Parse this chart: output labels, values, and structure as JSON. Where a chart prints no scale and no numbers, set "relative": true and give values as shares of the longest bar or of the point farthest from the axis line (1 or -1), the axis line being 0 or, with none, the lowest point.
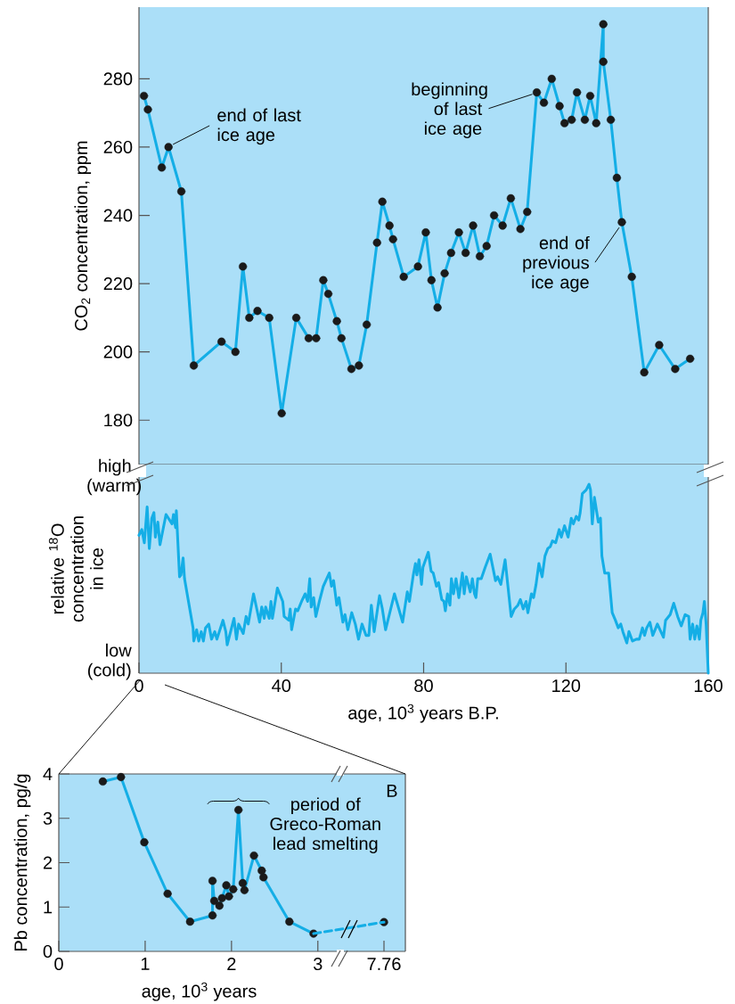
{
  "chart_data": [
    {
      "type": "line",
      "ylabel": "CO$_{2}$ concentration, ppm",
      "color": "#14aee6",
      "marker": "circle",
      "xlim": [
        0,
        160
      ],
      "ylim": [
        167,
        301
      ],
      "yticks": [
        180,
        200,
        220,
        240,
        260,
        280
      ],
      "tick_labels": "y",
      "x": [
        1.4,
        2.5,
        6.4,
        8.3,
        11.9,
        15.4,
        23.2,
        27.1,
        29.2,
        31.0,
        33.3,
        36.6,
        40.1,
        44.2,
        47.7,
        49.8,
        51.8,
        53.2,
        55.6,
        56.9,
        59.7,
        61.8,
        64.0,
        66.9,
        68.4,
        70.4,
        71.4,
        74.4,
        78.4,
        80.6,
        82.2,
        83.9,
        85.9,
        87.7,
        89.9,
        91.8,
        93.9,
        95.8,
        97.7,
        99.8,
        102.2,
        104.5,
        107.2,
        109.1,
        111.8,
        113.8,
        116.0,
        118.2,
        119.6,
        121.6,
        123.1,
        125.3,
        126.8,
        128.5,
        130.5,
        130.5,
        132.6,
        134.3,
        135.7,
        138.5,
        142.0,
        146.2,
        150.7,
        154.9
      ],
      "values": [
        275,
        271,
        254,
        260,
        247,
        196,
        203,
        200,
        225,
        210,
        212,
        210,
        182,
        210,
        204,
        204,
        221,
        217,
        209,
        204,
        195,
        196,
        208,
        232,
        244,
        237,
        233,
        222,
        225,
        235,
        221,
        213,
        223,
        229,
        235,
        229,
        237,
        228,
        231,
        240,
        237,
        245,
        236,
        241,
        276,
        273,
        280,
        272,
        267,
        268,
        276,
        268,
        275,
        267,
        296,
        285,
        268,
        251,
        238,
        222,
        194,
        202,
        195,
        198
      ],
      "annotations": [
        {
          "text": "end of last ice age",
          "x": 8.3,
          "y": 260
        },
        {
          "text": "beginning of last ice age",
          "x": 111.8,
          "y": 276
        },
        {
          "text": "end of previous ice age",
          "x": 135.7,
          "y": 238
        }
      ]
    },
    {
      "type": "line",
      "relative": true,
      "ylabel": "relative $^{18}$O concentration in ice",
      "xlabel": "age, 10$^{3}$ years B.P.",
      "color": "#14aee6",
      "xlim": [
        0,
        160
      ],
      "xticks": [
        0,
        40,
        80,
        120,
        160
      ],
      "tick_labels": "x",
      "x": [
        0.0,
        0.8,
        1.5,
        2.3,
        2.9,
        3.6,
        4.2,
        4.6,
        5.3,
        5.9,
        7.6,
        9.3,
        9.7,
        10.3,
        10.5,
        11.4,
        11.8,
        12.4,
        12.8,
        15.2,
        15.4,
        16.2,
        16.8,
        17.5,
        18.1,
        18.7,
        19.6,
        20.4,
        21.3,
        21.9,
        23.6,
        24.4,
        24.8,
        26.7,
        27.4,
        28.0,
        29.3,
        30.1,
        30.7,
        32.2,
        33.9,
        34.5,
        35.2,
        35.6,
        36.6,
        37.1,
        37.5,
        38.9,
        40.4,
        40.8,
        42.1,
        42.5,
        42.9,
        44.0,
        44.6,
        45.7,
        46.7,
        47.4,
        48.0,
        48.4,
        49.1,
        49.7,
        50.7,
        51.8,
        53.5,
        54.1,
        54.7,
        55.6,
        56.2,
        57.3,
        57.9,
        58.7,
        59.8,
        60.8,
        61.7,
        62.7,
        63.8,
        64.6,
        65.3,
        66.1,
        67.6,
        68.4,
        69.3,
        71.8,
        74.1,
        75.4,
        76.0,
        77.1,
        77.7,
        78.1,
        78.7,
        79.4,
        79.8,
        81.3,
        82.1,
        82.7,
        83.6,
        84.2,
        85.1,
        85.7,
        86.1,
        86.7,
        87.4,
        87.8,
        88.4,
        89.1,
        89.9,
        90.9,
        91.4,
        92.0,
        93.1,
        93.7,
        94.3,
        94.7,
        95.2,
        96.2,
        97.3,
        98.7,
        100.2,
        100.8,
        101.7,
        102.9,
        104.6,
        105.5,
        106.5,
        107.2,
        108.0,
        108.8,
        109.3,
        110.3,
        110.9,
        111.6,
        112.4,
        113.3,
        114.1,
        114.9,
        115.6,
        116.2,
        117.1,
        118.1,
        118.7,
        119.6,
        120.6,
        121.5,
        122.1,
        122.9,
        123.6,
        124.0,
        124.6,
        125.7,
        126.5,
        126.9,
        127.4,
        128.0,
        129.1,
        129.7,
        130.1,
        130.9,
        132.0,
        133.0,
        133.9,
        134.7,
        135.4,
        136.0,
        137.1,
        137.7,
        138.7,
        139.8,
        140.6,
        141.5,
        142.1,
        142.7,
        143.6,
        144.4,
        145.7,
        147.4,
        148.0,
        149.3,
        150.3,
        151.4,
        152.4,
        153.5,
        154.5,
        154.9,
        155.6,
        156.2,
        156.8,
        157.5,
        157.9,
        158.5,
        158.9,
        159.4,
        160.0
      ],
      "values": [
        0.73,
        0.76,
        0.69,
        0.88,
        0.66,
        0.82,
        0.85,
        0.72,
        0.8,
        0.68,
        0.84,
        0.79,
        0.84,
        0.77,
        0.86,
        0.51,
        0.52,
        0.61,
        0.5,
        0.24,
        0.17,
        0.23,
        0.17,
        0.22,
        0.17,
        0.24,
        0.26,
        0.18,
        0.22,
        0.18,
        0.28,
        0.22,
        0.15,
        0.29,
        0.18,
        0.26,
        0.21,
        0.3,
        0.26,
        0.42,
        0.27,
        0.35,
        0.29,
        0.35,
        0.29,
        0.38,
        0.29,
        0.45,
        0.38,
        0.3,
        0.28,
        0.34,
        0.23,
        0.34,
        0.33,
        0.38,
        0.42,
        0.38,
        0.5,
        0.35,
        0.4,
        0.3,
        0.38,
        0.46,
        0.53,
        0.46,
        0.49,
        0.36,
        0.4,
        0.27,
        0.31,
        0.23,
        0.32,
        0.26,
        0.18,
        0.26,
        0.2,
        0.2,
        0.36,
        0.22,
        0.41,
        0.34,
        0.23,
        0.42,
        0.27,
        0.43,
        0.38,
        0.52,
        0.58,
        0.52,
        0.6,
        0.47,
        0.56,
        0.64,
        0.54,
        0.53,
        0.46,
        0.48,
        0.39,
        0.38,
        0.33,
        0.42,
        0.36,
        0.5,
        0.42,
        0.5,
        0.4,
        0.53,
        0.42,
        0.51,
        0.43,
        0.5,
        0.42,
        0.4,
        0.5,
        0.5,
        0.56,
        0.63,
        0.49,
        0.51,
        0.47,
        0.6,
        0.3,
        0.34,
        0.36,
        0.39,
        0.34,
        0.38,
        0.32,
        0.42,
        0.4,
        0.47,
        0.58,
        0.51,
        0.62,
        0.66,
        0.67,
        0.7,
        0.69,
        0.76,
        0.72,
        0.78,
        0.72,
        0.82,
        0.79,
        0.83,
        0.81,
        0.85,
        0.95,
        0.97,
        1.0,
        0.97,
        0.79,
        0.93,
        0.8,
        0.82,
        0.62,
        0.53,
        0.53,
        0.32,
        0.28,
        0.24,
        0.26,
        0.22,
        0.16,
        0.22,
        0.17,
        0.18,
        0.18,
        0.24,
        0.2,
        0.24,
        0.27,
        0.2,
        0.26,
        0.19,
        0.28,
        0.31,
        0.37,
        0.3,
        0.25,
        0.31,
        0.3,
        0.18,
        0.26,
        0.18,
        0.25,
        0.18,
        0.28,
        0.32,
        0.38,
        0.26,
        0.0
      ],
      "annotations": [
        "high (warm)",
        "low (cold)"
      ]
    },
    {
      "type": "line",
      "xlabel": "age, 10$^{3}$ years",
      "ylabel": "Pb concentration, pg/g",
      "marker": "circle",
      "color": "#14aee6",
      "xlim": [
        0,
        3.25
      ],
      "ylim": [
        0,
        4
      ],
      "xticks": [
        0,
        1,
        2,
        3
      ],
      "yticks": [
        0,
        1,
        2,
        3,
        4
      ],
      "x": [
        0.51,
        0.72,
        0.99,
        1.26,
        1.52,
        1.78,
        1.78,
        1.8,
        1.86,
        1.89,
        1.94,
        1.97,
        2.02,
        2.08,
        2.13,
        2.15,
        2.26,
        2.35,
        2.37,
        2.67,
        2.95
      ],
      "values": [
        3.83,
        3.93,
        2.46,
        1.3,
        0.67,
        0.81,
        1.59,
        1.14,
        1.03,
        1.2,
        1.49,
        1.24,
        1.4,
        3.19,
        1.54,
        1.38,
        2.16,
        1.82,
        1.67,
        0.67,
        0.4
      ],
      "annotations": [
        "B",
        "period of Greco-Roman lead smelting"
      ]
    },
    {
      "type": "scatter",
      "marker": "circle",
      "color": "#1a1a1a",
      "categories": [
        "7.76"
      ],
      "values": [
        0.66
      ],
      "ylim": [
        0,
        4
      ],
      "tick_labels": "x"
    }
  ]
}
